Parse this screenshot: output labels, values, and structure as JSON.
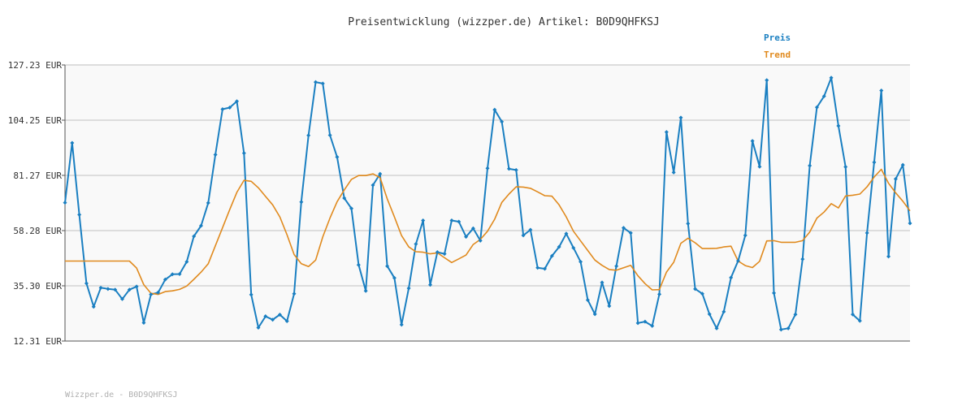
{
  "chart_data": {
    "type": "line",
    "title": "Preisentwicklung (wizzper.de) Artikel: B0D9QHFKSJ",
    "ylim": [
      12.31,
      127.23
    ],
    "y_ticks": [
      "127.23 EUR",
      "104.25 EUR",
      "81.27 EUR",
      "58.28 EUR",
      "35.30 EUR",
      "12.31 EUR"
    ],
    "y_tick_values": [
      127.23,
      104.25,
      81.27,
      58.28,
      35.3,
      12.31
    ],
    "grid": true,
    "legend_position": "top-right",
    "series": [
      {
        "name": "Preis",
        "color": "#1a7fc1",
        "values": [
          69.9,
          94.8,
          64.9,
          36.3,
          26.6,
          34.5,
          34.0,
          33.7,
          29.8,
          33.7,
          35.0,
          19.9,
          31.7,
          32.5,
          37.9,
          40.1,
          40.2,
          45.3,
          55.9,
          60.3,
          69.8,
          89.9,
          108.8,
          109.5,
          112.1,
          90.5,
          31.6,
          17.9,
          22.6,
          21.2,
          23.3,
          20.6,
          32.0,
          70.2,
          97.9,
          120.1,
          119.5,
          98.0,
          88.9,
          71.8,
          67.5,
          44.0,
          33.2,
          77.2,
          81.9,
          43.5,
          38.6,
          19.1,
          34.3,
          52.7,
          62.5,
          35.7,
          49.3,
          48.6,
          62.5,
          62.0,
          55.7,
          59.2,
          54.1,
          84.2,
          108.6,
          103.6,
          84.0,
          83.5,
          56.3,
          58.6,
          42.8,
          42.4,
          47.7,
          51.5,
          57.0,
          51.1,
          45.3,
          29.4,
          23.5,
          36.7,
          26.9,
          43.5,
          59.4,
          57.3,
          19.8,
          20.4,
          18.6,
          31.8,
          99.3,
          82.5,
          105.3,
          61.2,
          34.0,
          32.0,
          23.5,
          17.6,
          24.5,
          38.7,
          45.7,
          56.3,
          95.6,
          84.9,
          120.9,
          32.3,
          17.1,
          17.6,
          23.4,
          46.4,
          85.3,
          109.6,
          114.2,
          121.9,
          101.9,
          84.8,
          23.4,
          20.7,
          57.3,
          86.7,
          116.6,
          47.5,
          79.8,
          85.6,
          61.3
        ]
      },
      {
        "name": "Trend",
        "color": "#e08a1e",
        "values": [
          45.6,
          45.6,
          45.6,
          45.6,
          45.6,
          45.6,
          45.6,
          45.6,
          45.6,
          45.6,
          42.7,
          35.8,
          32.2,
          31.7,
          32.9,
          33.2,
          33.8,
          35.2,
          38.0,
          41.0,
          44.5,
          52.0,
          59.5,
          67.0,
          74.2,
          79.2,
          78.8,
          76.1,
          72.5,
          69.0,
          64.0,
          56.6,
          48.3,
          44.5,
          43.3,
          46.0,
          55.7,
          63.5,
          70.3,
          75.2,
          79.6,
          81.2,
          81.2,
          81.9,
          80.3,
          71.5,
          64.0,
          56.2,
          51.5,
          49.5,
          49.3,
          48.6,
          49.0,
          47.0,
          45.0,
          46.5,
          48.1,
          52.5,
          54.6,
          58.0,
          63.0,
          70.0,
          73.5,
          76.5,
          76.4,
          75.9,
          74.4,
          72.8,
          72.6,
          69.0,
          64.0,
          58.0,
          54.0,
          50.0,
          46.0,
          43.8,
          42.1,
          41.8,
          42.8,
          43.8,
          39.5,
          36.2,
          33.6,
          33.7,
          41.0,
          45.1,
          53.0,
          55.1,
          53.2,
          50.8,
          50.8,
          50.9,
          51.5,
          51.8,
          45.6,
          43.7,
          42.9,
          45.5,
          54.0,
          54.1,
          53.4,
          53.4,
          53.4,
          54.1,
          57.7,
          63.5,
          66.0,
          69.5,
          67.7,
          72.7,
          73.0,
          73.5,
          76.5,
          80.6,
          83.8,
          78.0,
          74.0,
          70.5,
          66.5
        ]
      }
    ]
  },
  "footer": "Wizzper.de - B0D9QHFKSJ"
}
